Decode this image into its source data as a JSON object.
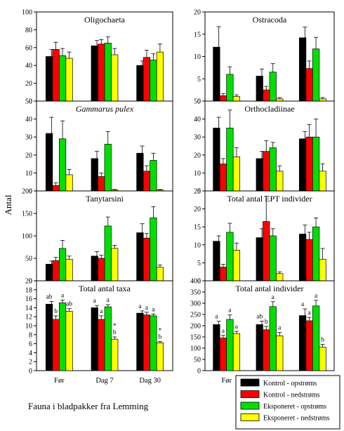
{
  "figure": {
    "ylabel": "Antal",
    "caption": "Fauna i bladpakker fra Lemming",
    "categories": [
      "Før",
      "Dag 7",
      "Dag 30"
    ],
    "series": [
      {
        "name": "Kontrol - opstrøms",
        "color": "#000000"
      },
      {
        "name": "Kontrol - nedstrøms",
        "color": "#ff0000"
      },
      {
        "name": "Eksponeret - opstrøms",
        "color": "#00e000"
      },
      {
        "name": "Eksponeret - nedstrøms",
        "color": "#ffff00"
      }
    ]
  },
  "chart_data": [
    {
      "type": "bar",
      "title": "Oligochaeta",
      "title_italic": false,
      "categories": [
        "Før",
        "Dag 7",
        "Dag 30"
      ],
      "ylim": [
        0,
        100
      ],
      "yticks": [
        0,
        20,
        40,
        60,
        80,
        100
      ],
      "series": [
        {
          "name": "Kontrol - opstrøms",
          "values": [
            50,
            62,
            40
          ],
          "errors": [
            8,
            6,
            5
          ]
        },
        {
          "name": "Kontrol - nedstrøms",
          "values": [
            58,
            64,
            49
          ],
          "errors": [
            8,
            5,
            8
          ]
        },
        {
          "name": "Eksponeret - opstrøms",
          "values": [
            51,
            65,
            46
          ],
          "errors": [
            8,
            7,
            7
          ]
        },
        {
          "name": "Eksponeret - nedstrøms",
          "values": [
            48,
            52,
            55
          ],
          "errors": [
            7,
            7,
            9
          ]
        }
      ]
    },
    {
      "type": "bar",
      "title": "Ostracoda",
      "title_italic": false,
      "categories": [
        "Før",
        "Dag 7",
        "Dag 30"
      ],
      "ylim": [
        0,
        20
      ],
      "yticks": [
        0,
        5,
        10,
        15,
        20
      ],
      "series": [
        {
          "name": "Kontrol - opstrøms",
          "values": [
            12.1,
            5.6,
            14.2
          ],
          "errors": [
            4.6,
            1.6,
            2.4
          ]
        },
        {
          "name": "Kontrol - nedstrøms",
          "values": [
            1.2,
            2.5,
            7.3
          ],
          "errors": [
            0.5,
            0.8,
            1.7
          ]
        },
        {
          "name": "Eksponeret - opstrøms",
          "values": [
            6.0,
            6.5,
            11.7
          ],
          "errors": [
            1.7,
            1.9,
            2.6
          ]
        },
        {
          "name": "Eksponeret - nedstrøms",
          "values": [
            1.0,
            0.5,
            0.5
          ],
          "errors": [
            0.4,
            0.3,
            0.3
          ]
        }
      ]
    },
    {
      "type": "bar",
      "title": "Gammarus pulex",
      "title_italic": true,
      "categories": [
        "Før",
        "Dag 7",
        "Dag 30"
      ],
      "ylim": [
        0,
        50
      ],
      "yticks": [
        0,
        10,
        20,
        30,
        40,
        50
      ],
      "series": [
        {
          "name": "Kontrol - opstrøms",
          "values": [
            32,
            18,
            21
          ],
          "errors": [
            9,
            4,
            4
          ]
        },
        {
          "name": "Kontrol - nedstrøms",
          "values": [
            3,
            8,
            11
          ],
          "errors": [
            1.5,
            2,
            3
          ]
        },
        {
          "name": "Eksponeret - opstrøms",
          "values": [
            29,
            26,
            17
          ],
          "errors": [
            10,
            7,
            4
          ]
        },
        {
          "name": "Eksponeret - nedstrøms",
          "values": [
            9,
            0.5,
            0.5
          ],
          "errors": [
            3,
            0.3,
            0.3
          ]
        }
      ]
    },
    {
      "type": "bar",
      "title": "Orthocladiinae",
      "title_italic": false,
      "categories": [
        "Før",
        "Dag 7",
        "Dag 30"
      ],
      "ylim": [
        0,
        50
      ],
      "yticks": [
        0,
        10,
        20,
        30,
        40,
        50
      ],
      "series": [
        {
          "name": "Kontrol - opstrøms",
          "values": [
            35,
            18,
            29
          ],
          "errors": [
            6,
            4,
            4
          ]
        },
        {
          "name": "Kontrol - nedstrøms",
          "values": [
            15,
            22,
            30
          ],
          "errors": [
            3,
            6,
            7
          ]
        },
        {
          "name": "Eksponeret - opstrøms",
          "values": [
            35,
            24,
            30
          ],
          "errors": [
            10,
            3,
            10
          ]
        },
        {
          "name": "Eksponeret - nedstrøms",
          "values": [
            19,
            11,
            11
          ],
          "errors": [
            5,
            3,
            4
          ]
        }
      ]
    },
    {
      "type": "bar",
      "title": "Tanytarsini",
      "title_italic": false,
      "categories": [
        "Før",
        "Dag 7",
        "Dag 30"
      ],
      "ylim": [
        0,
        200
      ],
      "yticks": [
        0,
        50,
        100,
        150,
        200
      ],
      "series": [
        {
          "name": "Kontrol - opstrøms",
          "values": [
            37,
            55,
            107
          ],
          "errors": [
            7,
            10,
            20
          ]
        },
        {
          "name": "Kontrol - nedstrøms",
          "values": [
            45,
            50,
            95
          ],
          "errors": [
            7,
            7,
            10
          ]
        },
        {
          "name": "Eksponeret - opstrøms",
          "values": [
            72,
            122,
            140
          ],
          "errors": [
            18,
            20,
            25
          ]
        },
        {
          "name": "Eksponeret - nedstrøms",
          "values": [
            48,
            72,
            30
          ],
          "errors": [
            7,
            7,
            5
          ]
        }
      ]
    },
    {
      "type": "bar",
      "title": "Total antal EPT individer",
      "title_italic": false,
      "categories": [
        "Før",
        "Dag 7",
        "Dag 30"
      ],
      "ylim": [
        0,
        25
      ],
      "yticks": [
        0,
        5,
        10,
        15,
        20,
        25
      ],
      "series": [
        {
          "name": "Kontrol - opstrøms",
          "values": [
            11,
            12,
            13
          ],
          "errors": [
            1.5,
            2.5,
            2.5
          ]
        },
        {
          "name": "Kontrol - nedstrøms",
          "values": [
            3.8,
            16.5,
            11.5
          ],
          "errors": [
            0.8,
            7,
            2
          ]
        },
        {
          "name": "Eksponeret - opstrøms",
          "values": [
            13.5,
            12.5,
            15
          ],
          "errors": [
            2.5,
            2,
            2.5
          ]
        },
        {
          "name": "Eksponeret - nedstrøms",
          "values": [
            8.5,
            2,
            6
          ],
          "errors": [
            2,
            0.5,
            3
          ]
        }
      ]
    },
    {
      "type": "bar",
      "title": "Total antal taxa",
      "title_italic": false,
      "categories": [
        "Før",
        "Dag 7",
        "Dag 30"
      ],
      "ylim": [
        0,
        20
      ],
      "yticks": [
        0,
        2,
        4,
        6,
        8,
        10,
        12,
        14,
        16,
        18,
        20
      ],
      "series": [
        {
          "name": "Kontrol - opstrøms",
          "values": [
            14.8,
            14,
            12.8
          ],
          "errors": [
            0.6,
            0.5,
            0.5
          ],
          "labels": [
            "ab",
            "a",
            "a"
          ]
        },
        {
          "name": "Kontrol - nedstrøms",
          "values": [
            11.4,
            11.4,
            12.4
          ],
          "errors": [
            0.8,
            0.8,
            0.6
          ],
          "labels": [
            "b",
            "a",
            "a"
          ]
        },
        {
          "name": "Eksponeret - opstrøms",
          "values": [
            15.1,
            14.2,
            12.2
          ],
          "errors": [
            0.6,
            0.5,
            0.4
          ],
          "labels": [
            "a",
            "a",
            "a"
          ]
        },
        {
          "name": "Eksponeret - nedstrøms",
          "values": [
            13.2,
            7,
            6.2
          ],
          "errors": [
            0.6,
            0.5,
            0.3
          ],
          "labels": [
            "ab",
            "* b",
            "* b"
          ]
        }
      ]
    },
    {
      "type": "bar",
      "title": "Total antal individer",
      "title_italic": false,
      "categories": [
        "Før",
        "Dag 7",
        "Dag 30"
      ],
      "ylim": [
        0,
        400
      ],
      "yticks": [
        0,
        50,
        100,
        150,
        200,
        250,
        300,
        350,
        400
      ],
      "series": [
        {
          "name": "Kontrol - opstrøms",
          "values": [
            205,
            205,
            245
          ],
          "errors": [
            15,
            15,
            30
          ],
          "labels": [
            "a",
            "ab",
            "a"
          ]
        },
        {
          "name": "Kontrol - nedstrøms",
          "values": [
            145,
            182,
            222
          ],
          "errors": [
            12,
            15,
            15
          ],
          "labels": [
            "a",
            "b",
            "a"
          ]
        },
        {
          "name": "Eksponeret - opstrøms",
          "values": [
            228,
            285,
            288
          ],
          "errors": [
            20,
            22,
            25
          ],
          "labels": [
            "a",
            "a",
            "a"
          ]
        },
        {
          "name": "Eksponeret - nedstrøms",
          "values": [
            165,
            155,
            105
          ],
          "errors": [
            10,
            15,
            12
          ],
          "labels": [
            "a",
            "a",
            "b"
          ]
        }
      ]
    }
  ]
}
